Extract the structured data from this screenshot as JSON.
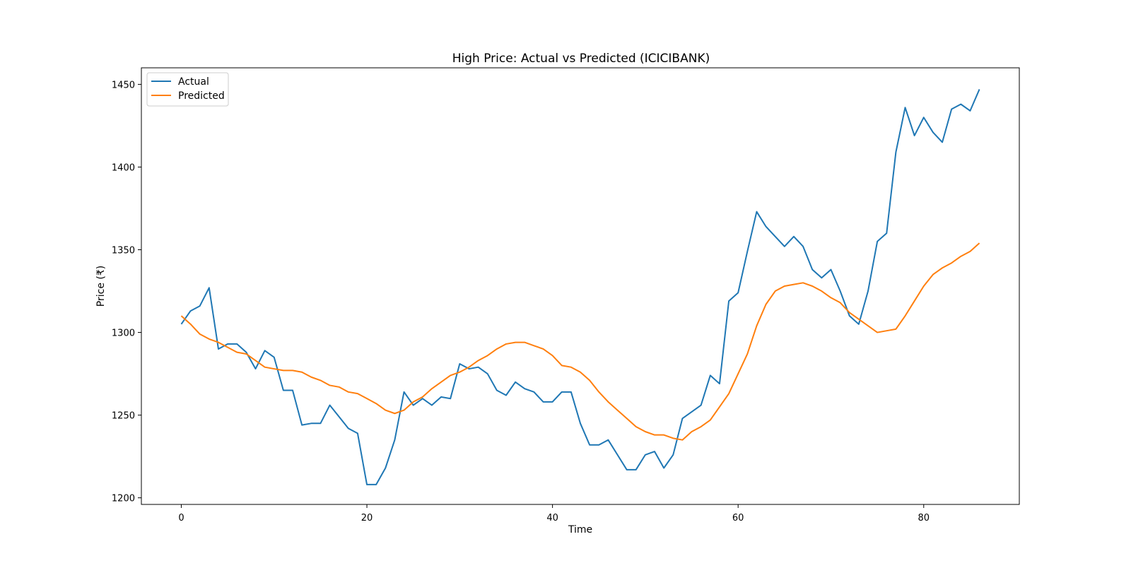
{
  "chart_data": {
    "type": "line",
    "title": "High Price: Actual vs Predicted (ICICIBANK)",
    "xlabel": "Time",
    "ylabel": "Price (₹)",
    "xlim": [
      -4.3,
      90.3
    ],
    "ylim": [
      1196,
      1460
    ],
    "xticks": [
      0,
      20,
      40,
      60,
      80
    ],
    "yticks": [
      1200,
      1250,
      1300,
      1350,
      1400,
      1450
    ],
    "grid": false,
    "legend_position": "upper-left",
    "colors": {
      "Actual": "#1f77b4",
      "Predicted": "#ff7f0e"
    },
    "series": [
      {
        "name": "Actual",
        "values": [
          1305,
          1313,
          1316,
          1327,
          1290,
          1293,
          1293,
          1288,
          1278,
          1289,
          1285,
          1265,
          1265,
          1244,
          1245,
          1245,
          1256,
          1249,
          1242,
          1239,
          1208,
          1208,
          1218,
          1235,
          1264,
          1256,
          1260,
          1256,
          1261,
          1260,
          1281,
          1278,
          1279,
          1275,
          1265,
          1262,
          1270,
          1266,
          1264,
          1258,
          1258,
          1264,
          1264,
          1245,
          1232,
          1232,
          1235,
          1226,
          1217,
          1217,
          1226,
          1228,
          1218,
          1226,
          1248,
          1252,
          1256,
          1274,
          1269,
          1319,
          1324,
          1349,
          1373,
          1364,
          1358,
          1352,
          1358,
          1352,
          1338,
          1333,
          1338,
          1325,
          1310,
          1305,
          1325,
          1355,
          1360,
          1409,
          1436,
          1419,
          1430,
          1421,
          1415,
          1435,
          1438,
          1434,
          1447
        ]
      },
      {
        "name": "Predicted",
        "values": [
          1310,
          1305,
          1299,
          1296,
          1294,
          1291,
          1288,
          1287,
          1283,
          1279,
          1278,
          1277,
          1277,
          1276,
          1273,
          1271,
          1268,
          1267,
          1264,
          1263,
          1260,
          1257,
          1253,
          1251,
          1253,
          1258,
          1261,
          1266,
          1270,
          1274,
          1276,
          1279,
          1283,
          1286,
          1290,
          1293,
          1294,
          1294,
          1292,
          1290,
          1286,
          1280,
          1279,
          1276,
          1271,
          1264,
          1258,
          1253,
          1248,
          1243,
          1240,
          1238,
          1238,
          1236,
          1235,
          1240,
          1243,
          1247,
          1255,
          1263,
          1275,
          1287,
          1304,
          1317,
          1325,
          1328,
          1329,
          1330,
          1328,
          1325,
          1321,
          1318,
          1312,
          1308,
          1304,
          1300,
          1301,
          1302,
          1310,
          1319,
          1328,
          1335,
          1339,
          1342,
          1346,
          1349,
          1354
        ]
      }
    ]
  }
}
